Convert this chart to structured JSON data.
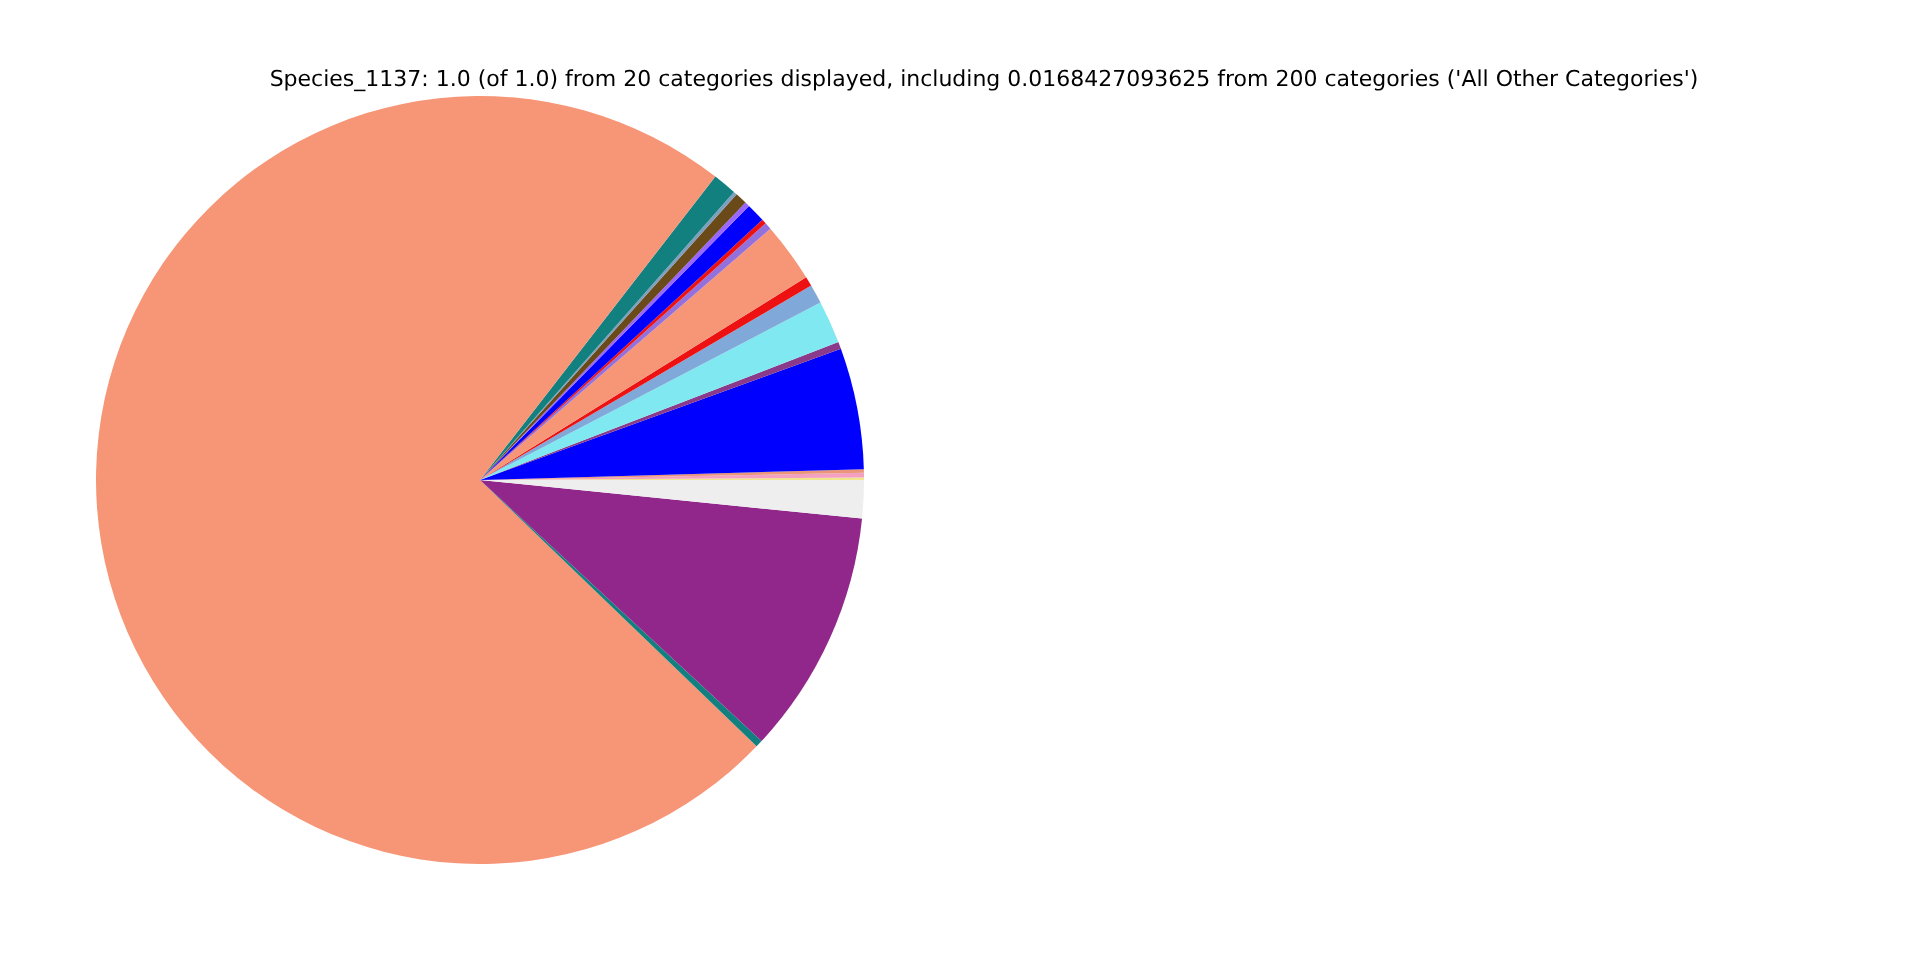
{
  "chart_data": {
    "type": "pie",
    "title": "Species_1137: 1.0 (of 1.0) from 20 categories displayed, including 0.0168427093625 from 200 categories ('All Other Categories')",
    "categories": [
      null,
      null,
      null,
      null,
      null,
      null,
      null,
      null,
      null,
      null,
      null,
      null,
      null,
      null,
      null,
      null,
      null,
      null,
      null,
      null
    ],
    "values": [
      0.1,
      0.2,
      0.15,
      5.1,
      0.3,
      1.8,
      0.8,
      0.4,
      2.5,
      0.3,
      0.2,
      0.8,
      0.2,
      0.5,
      0.15,
      1.0,
      73.3,
      0.3,
      10.3,
      1.6
    ],
    "colors": [
      "#f0e68c",
      "#f4a0c0",
      "#e9967a",
      "#0000ff",
      "#8b3a8b",
      "#7fe8f0",
      "#80a8d8",
      "#ee1111",
      "#f79677",
      "#9370db",
      "#ee1111",
      "#0000ff",
      "#9966ff",
      "#6b4a1a",
      "#7f9fbf",
      "#138080",
      "#f79677",
      "#138080",
      "#91278b",
      "#eeeeee"
    ]
  }
}
